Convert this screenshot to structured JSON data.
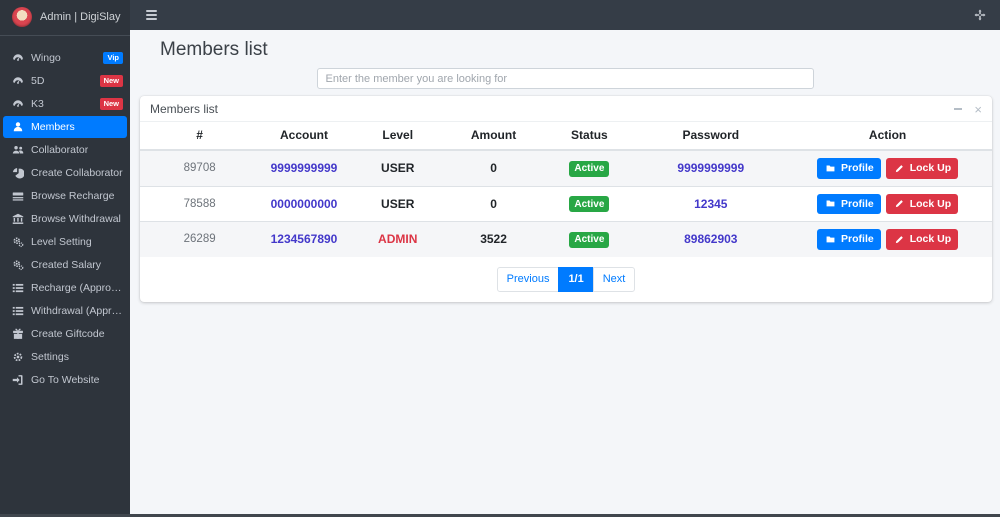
{
  "brand": {
    "title": "Admin | DigiSlay"
  },
  "sidebar": {
    "items": [
      {
        "label": "Wingo",
        "icon": "gauge-icon",
        "badge": "Vip",
        "badge_color": "#007bff",
        "active": false
      },
      {
        "label": "5D",
        "icon": "gauge-icon",
        "badge": "New",
        "badge_color": "#dc3545",
        "active": false
      },
      {
        "label": "K3",
        "icon": "gauge-icon",
        "badge": "New",
        "badge_color": "#dc3545",
        "active": false
      },
      {
        "label": "Members",
        "icon": "user-icon",
        "badge": null,
        "active": true
      },
      {
        "label": "Collaborator",
        "icon": "users-icon",
        "badge": null,
        "active": false
      },
      {
        "label": "Create Collaborator",
        "icon": "pie-chart-icon",
        "badge": null,
        "active": false
      },
      {
        "label": "Browse Recharge",
        "icon": "money-icon",
        "badge": null,
        "active": false
      },
      {
        "label": "Browse Withdrawal",
        "icon": "bank-icon",
        "badge": null,
        "active": false
      },
      {
        "label": "Level Setting",
        "icon": "cogs-icon",
        "badge": null,
        "active": false
      },
      {
        "label": "Created Salary",
        "icon": "cogs-icon",
        "badge": null,
        "active": false
      },
      {
        "label": "Recharge (Approved)",
        "icon": "list-icon",
        "badge": null,
        "active": false
      },
      {
        "label": "Withdrawal (Approved)",
        "icon": "list-icon",
        "badge": null,
        "active": false
      },
      {
        "label": "Create Giftcode",
        "icon": "gift-icon",
        "badge": null,
        "active": false
      },
      {
        "label": "Settings",
        "icon": "gear-icon",
        "badge": null,
        "active": false
      },
      {
        "label": "Go To Website",
        "icon": "sign-out-icon",
        "badge": null,
        "active": false
      }
    ]
  },
  "page": {
    "title": "Members list"
  },
  "search": {
    "placeholder": "Enter the member you are looking for"
  },
  "card": {
    "title": "Members list",
    "close_symbol": "×"
  },
  "table": {
    "headers": [
      "#",
      "Account",
      "Level",
      "Amount",
      "Status",
      "Password",
      "Action"
    ],
    "rows": [
      {
        "id": "89708",
        "account": "9999999999",
        "level": "USER",
        "amount": "0",
        "status": "Active",
        "password": "9999999999"
      },
      {
        "id": "78588",
        "account": "0000000000",
        "level": "USER",
        "amount": "0",
        "status": "Active",
        "password": "12345"
      },
      {
        "id": "26289",
        "account": "1234567890",
        "level": "ADMIN",
        "amount": "3522",
        "status": "Active",
        "password": "89862903"
      }
    ],
    "actions": {
      "profile": "Profile",
      "lock": "Lock Up"
    }
  },
  "pagination": {
    "previous": "Previous",
    "current": "1/1",
    "next": "Next"
  },
  "colors": {
    "accent": "#007bff",
    "danger": "#dc3545",
    "success": "#28a745",
    "link": "#4338ca",
    "sidebar_bg": "#2e343c",
    "topbar_bg": "#353d47",
    "content_bg": "#f4f6f9"
  }
}
